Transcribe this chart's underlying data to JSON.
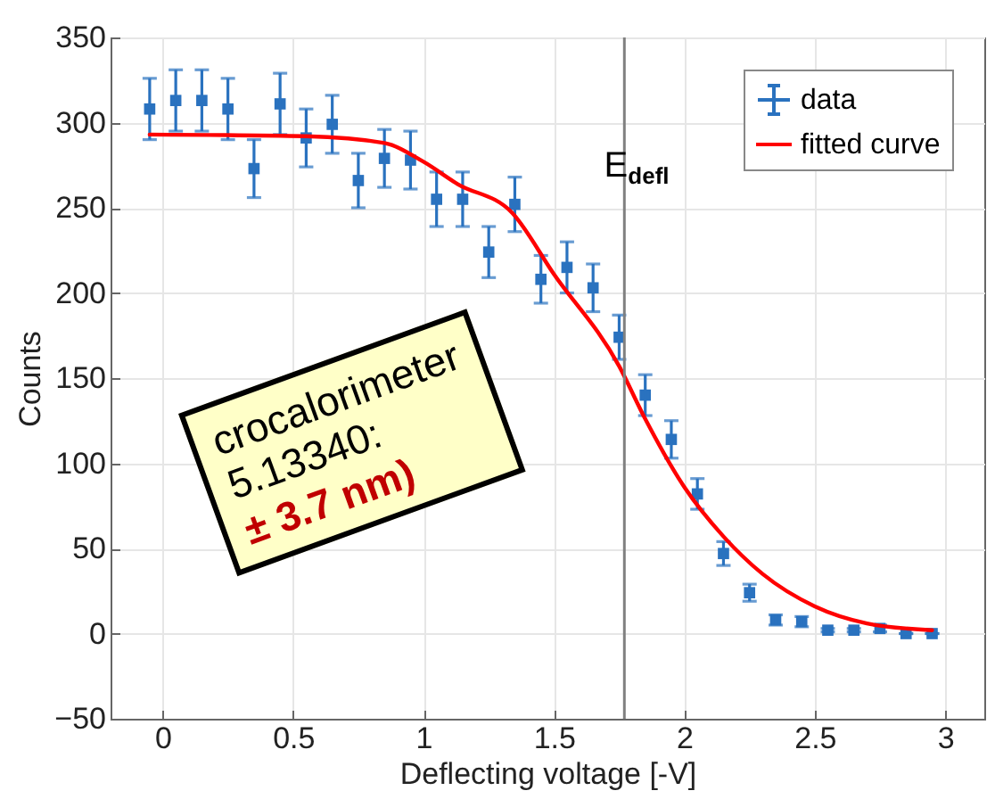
{
  "chart_data": {
    "type": "scatter",
    "xlabel": "Deflecting voltage [-V]",
    "ylabel": "Counts",
    "xlim": [
      -0.2,
      3.15
    ],
    "xticks": [
      0,
      0.5,
      1,
      1.5,
      2,
      2.5,
      3
    ],
    "ylim": [
      -50,
      350
    ],
    "yticks": [
      -50,
      0,
      50,
      100,
      150,
      200,
      250,
      300,
      350
    ],
    "grid": true,
    "legend": "top right",
    "marker": "square",
    "series": [
      {
        "name": "data",
        "color": "#2a72bf",
        "x": [
          -0.05,
          0.05,
          0.15,
          0.25,
          0.35,
          0.45,
          0.55,
          0.65,
          0.75,
          0.85,
          0.95,
          1.05,
          1.15,
          1.25,
          1.35,
          1.45,
          1.55,
          1.65,
          1.75,
          1.85,
          1.95,
          2.05,
          2.15,
          2.25,
          2.35,
          2.45,
          2.55,
          2.65,
          2.75,
          2.85,
          2.95
        ],
        "values": [
          308,
          313,
          313,
          308,
          273,
          311,
          291,
          299,
          266,
          279,
          278,
          255,
          255,
          224,
          252,
          208,
          215,
          203,
          174,
          140,
          114,
          82,
          47,
          24,
          8,
          7,
          2,
          2,
          3,
          0,
          0
        ],
        "errors": [
          18,
          18,
          18,
          18,
          17,
          18,
          17,
          17,
          16,
          17,
          17,
          16,
          16,
          15,
          16,
          14,
          15,
          14,
          13,
          12,
          11,
          9,
          7,
          5,
          3,
          3,
          1,
          1,
          2,
          0,
          0
        ]
      },
      {
        "name": "fitted curve",
        "type": "line",
        "color": "#ff0000",
        "marker": "none",
        "line_style": "solid",
        "x": [
          -0.05,
          0.55,
          0.85,
          1.0,
          1.13,
          1.34,
          1.5,
          1.75,
          1.85,
          2.0,
          2.15,
          2.3,
          2.5,
          2.7,
          2.95
        ],
        "values": [
          293,
          292,
          288,
          277,
          264,
          247,
          211,
          157,
          126,
          86,
          57,
          35,
          16,
          6,
          2
        ]
      }
    ],
    "ref_lines": [
      {
        "axis": "x",
        "value": 1.77,
        "label": "E$_{defl}$",
        "color": "#808080"
      }
    ],
    "annotations": [
      "crocalorimeter",
      "5.13340:",
      "± 3.7 nm)"
    ]
  }
}
